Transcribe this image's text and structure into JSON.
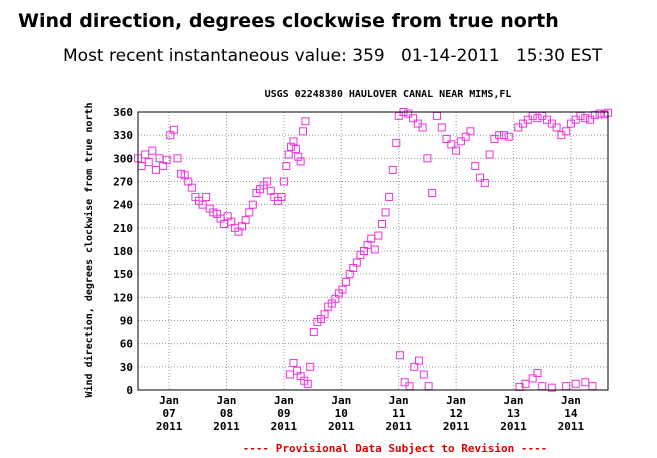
{
  "header": {
    "title": "Wind direction, degrees clockwise from true north",
    "recent_label": "Most recent instantaneous value:",
    "recent_value": "359",
    "recent_date": "01-14-2011",
    "recent_time": "15:30 EST"
  },
  "chart_data": {
    "type": "scatter",
    "title": "USGS 02248380 HAULOVER CANAL NEAR MIMS,FL",
    "ylabel": "Wind direction, degrees clockwise from true north",
    "xlabel": "",
    "ylim": [
      0,
      360
    ],
    "yticks": [
      "0",
      "30",
      "60",
      "90",
      "120",
      "150",
      "180",
      "210",
      "240",
      "270",
      "300",
      "330",
      "360"
    ],
    "xlim": [
      "2011-01-06T11:00",
      "2011-01-14T15:30"
    ],
    "xticks": [
      {
        "month": "Jan",
        "day": "07",
        "year": "2011",
        "date": "2011-01-07"
      },
      {
        "month": "Jan",
        "day": "08",
        "year": "2011",
        "date": "2011-01-08"
      },
      {
        "month": "Jan",
        "day": "09",
        "year": "2011",
        "date": "2011-01-09"
      },
      {
        "month": "Jan",
        "day": "10",
        "year": "2011",
        "date": "2011-01-10"
      },
      {
        "month": "Jan",
        "day": "11",
        "year": "2011",
        "date": "2011-01-11"
      },
      {
        "month": "Jan",
        "day": "12",
        "year": "2011",
        "date": "2011-01-12"
      },
      {
        "month": "Jan",
        "day": "13",
        "year": "2011",
        "date": "2011-01-13"
      },
      {
        "month": "Jan",
        "day": "14",
        "year": "2011",
        "date": "2011-01-14"
      }
    ],
    "marker_color": "#ee33dd",
    "grid": true,
    "footnote": "---- Provisional Data Subject to Revision ----",
    "footnote_color": "#dd0000",
    "series": [
      {
        "points": [
          [
            "2011-01-06T11:00",
            300
          ],
          [
            "2011-01-06T12:30",
            290
          ],
          [
            "2011-01-06T14:00",
            305
          ],
          [
            "2011-01-06T15:30",
            295
          ],
          [
            "2011-01-06T17:00",
            310
          ],
          [
            "2011-01-06T18:30",
            285
          ],
          [
            "2011-01-06T20:00",
            300
          ],
          [
            "2011-01-06T21:30",
            290
          ],
          [
            "2011-01-06T23:00",
            298
          ],
          [
            "2011-01-07T00:30",
            330
          ],
          [
            "2011-01-07T02:00",
            337
          ],
          [
            "2011-01-07T03:30",
            300
          ],
          [
            "2011-01-07T05:00",
            280
          ],
          [
            "2011-01-07T06:30",
            278
          ],
          [
            "2011-01-07T08:00",
            270
          ],
          [
            "2011-01-07T09:30",
            262
          ],
          [
            "2011-01-07T11:00",
            250
          ],
          [
            "2011-01-07T12:30",
            245
          ],
          [
            "2011-01-07T14:00",
            240
          ],
          [
            "2011-01-07T15:30",
            250
          ],
          [
            "2011-01-07T17:00",
            235
          ],
          [
            "2011-01-07T18:30",
            230
          ],
          [
            "2011-01-07T20:00",
            228
          ],
          [
            "2011-01-07T21:30",
            222
          ],
          [
            "2011-01-07T23:00",
            215
          ],
          [
            "2011-01-08T00:30",
            225
          ],
          [
            "2011-01-08T02:00",
            218
          ],
          [
            "2011-01-08T03:30",
            210
          ],
          [
            "2011-01-08T05:00",
            205
          ],
          [
            "2011-01-08T06:30",
            212
          ],
          [
            "2011-01-08T08:00",
            220
          ],
          [
            "2011-01-08T09:30",
            230
          ],
          [
            "2011-01-08T11:00",
            240
          ],
          [
            "2011-01-08T12:30",
            255
          ],
          [
            "2011-01-08T14:00",
            260
          ],
          [
            "2011-01-08T15:30",
            265
          ],
          [
            "2011-01-08T17:00",
            270
          ],
          [
            "2011-01-08T18:30",
            258
          ],
          [
            "2011-01-08T20:00",
            250
          ],
          [
            "2011-01-08T21:30",
            245
          ],
          [
            "2011-01-08T23:00",
            250
          ],
          [
            "2011-01-09T00:00",
            270
          ],
          [
            "2011-01-09T01:00",
            290
          ],
          [
            "2011-01-09T02:00",
            305
          ],
          [
            "2011-01-09T03:00",
            315
          ],
          [
            "2011-01-09T04:00",
            322
          ],
          [
            "2011-01-09T05:00",
            312
          ],
          [
            "2011-01-09T06:00",
            302
          ],
          [
            "2011-01-09T07:00",
            296
          ],
          [
            "2011-01-09T08:00",
            335
          ],
          [
            "2011-01-09T09:00",
            348
          ],
          [
            "2011-01-09T02:30",
            20
          ],
          [
            "2011-01-09T04:00",
            35
          ],
          [
            "2011-01-09T05:30",
            25
          ],
          [
            "2011-01-09T07:00",
            18
          ],
          [
            "2011-01-09T08:30",
            12
          ],
          [
            "2011-01-09T10:00",
            8
          ],
          [
            "2011-01-09T11:00",
            30
          ],
          [
            "2011-01-09T12:30",
            75
          ],
          [
            "2011-01-09T14:00",
            88
          ],
          [
            "2011-01-09T15:30",
            92
          ],
          [
            "2011-01-09T17:00",
            98
          ],
          [
            "2011-01-09T18:30",
            108
          ],
          [
            "2011-01-09T20:00",
            112
          ],
          [
            "2011-01-09T21:30",
            118
          ],
          [
            "2011-01-09T23:00",
            125
          ],
          [
            "2011-01-10T00:30",
            130
          ],
          [
            "2011-01-10T02:00",
            140
          ],
          [
            "2011-01-10T03:30",
            150
          ],
          [
            "2011-01-10T05:00",
            158
          ],
          [
            "2011-01-10T06:30",
            165
          ],
          [
            "2011-01-10T08:00",
            175
          ],
          [
            "2011-01-10T09:30",
            180
          ],
          [
            "2011-01-10T11:00",
            188
          ],
          [
            "2011-01-10T12:30",
            196
          ],
          [
            "2011-01-10T14:00",
            182
          ],
          [
            "2011-01-10T15:30",
            200
          ],
          [
            "2011-01-10T17:00",
            215
          ],
          [
            "2011-01-10T18:30",
            230
          ],
          [
            "2011-01-10T20:00",
            250
          ],
          [
            "2011-01-10T21:30",
            285
          ],
          [
            "2011-01-10T23:00",
            320
          ],
          [
            "2011-01-11T00:00",
            355
          ],
          [
            "2011-01-11T02:00",
            360
          ],
          [
            "2011-01-11T04:00",
            358
          ],
          [
            "2011-01-11T06:00",
            352
          ],
          [
            "2011-01-11T08:00",
            345
          ],
          [
            "2011-01-11T10:00",
            340
          ],
          [
            "2011-01-11T12:00",
            300
          ],
          [
            "2011-01-11T00:30",
            45
          ],
          [
            "2011-01-11T02:30",
            10
          ],
          [
            "2011-01-11T04:30",
            5
          ],
          [
            "2011-01-11T06:30",
            30
          ],
          [
            "2011-01-11T08:30",
            38
          ],
          [
            "2011-01-11T10:30",
            20
          ],
          [
            "2011-01-11T12:30",
            5
          ],
          [
            "2011-01-11T14:00",
            255
          ],
          [
            "2011-01-11T16:00",
            355
          ],
          [
            "2011-01-11T18:00",
            340
          ],
          [
            "2011-01-11T20:00",
            325
          ],
          [
            "2011-01-11T22:00",
            318
          ],
          [
            "2011-01-12T00:00",
            310
          ],
          [
            "2011-01-12T02:00",
            322
          ],
          [
            "2011-01-12T04:00",
            328
          ],
          [
            "2011-01-12T06:00",
            335
          ],
          [
            "2011-01-12T08:00",
            290
          ],
          [
            "2011-01-12T10:00",
            275
          ],
          [
            "2011-01-12T12:00",
            268
          ],
          [
            "2011-01-12T14:00",
            305
          ],
          [
            "2011-01-12T16:00",
            325
          ],
          [
            "2011-01-12T18:00",
            330
          ],
          [
            "2011-01-12T20:00",
            330
          ],
          [
            "2011-01-12T22:00",
            328
          ],
          [
            "2011-01-13T02:00",
            340
          ],
          [
            "2011-01-13T04:00",
            345
          ],
          [
            "2011-01-13T06:00",
            350
          ],
          [
            "2011-01-13T08:00",
            355
          ],
          [
            "2011-01-13T10:00",
            352
          ],
          [
            "2011-01-13T12:00",
            355
          ],
          [
            "2011-01-13T14:00",
            350
          ],
          [
            "2011-01-13T16:00",
            345
          ],
          [
            "2011-01-13T18:00",
            340
          ],
          [
            "2011-01-13T20:00",
            330
          ],
          [
            "2011-01-13T22:00",
            335
          ],
          [
            "2011-01-14T00:00",
            345
          ],
          [
            "2011-01-14T02:00",
            350
          ],
          [
            "2011-01-14T04:00",
            355
          ],
          [
            "2011-01-14T06:00",
            352
          ],
          [
            "2011-01-14T08:00",
            350
          ],
          [
            "2011-01-14T10:00",
            356
          ],
          [
            "2011-01-14T12:00",
            358
          ],
          [
            "2011-01-14T14:00",
            357
          ],
          [
            "2011-01-14T15:30",
            359
          ],
          [
            "2011-01-13T02:30",
            4
          ],
          [
            "2011-01-13T05:00",
            8
          ],
          [
            "2011-01-13T08:00",
            15
          ],
          [
            "2011-01-13T10:00",
            22
          ],
          [
            "2011-01-13T12:00",
            5
          ],
          [
            "2011-01-13T16:00",
            3
          ],
          [
            "2011-01-13T22:00",
            5
          ],
          [
            "2011-01-14T02:00",
            8
          ],
          [
            "2011-01-14T06:00",
            10
          ],
          [
            "2011-01-14T09:00",
            5
          ]
        ]
      }
    ]
  }
}
